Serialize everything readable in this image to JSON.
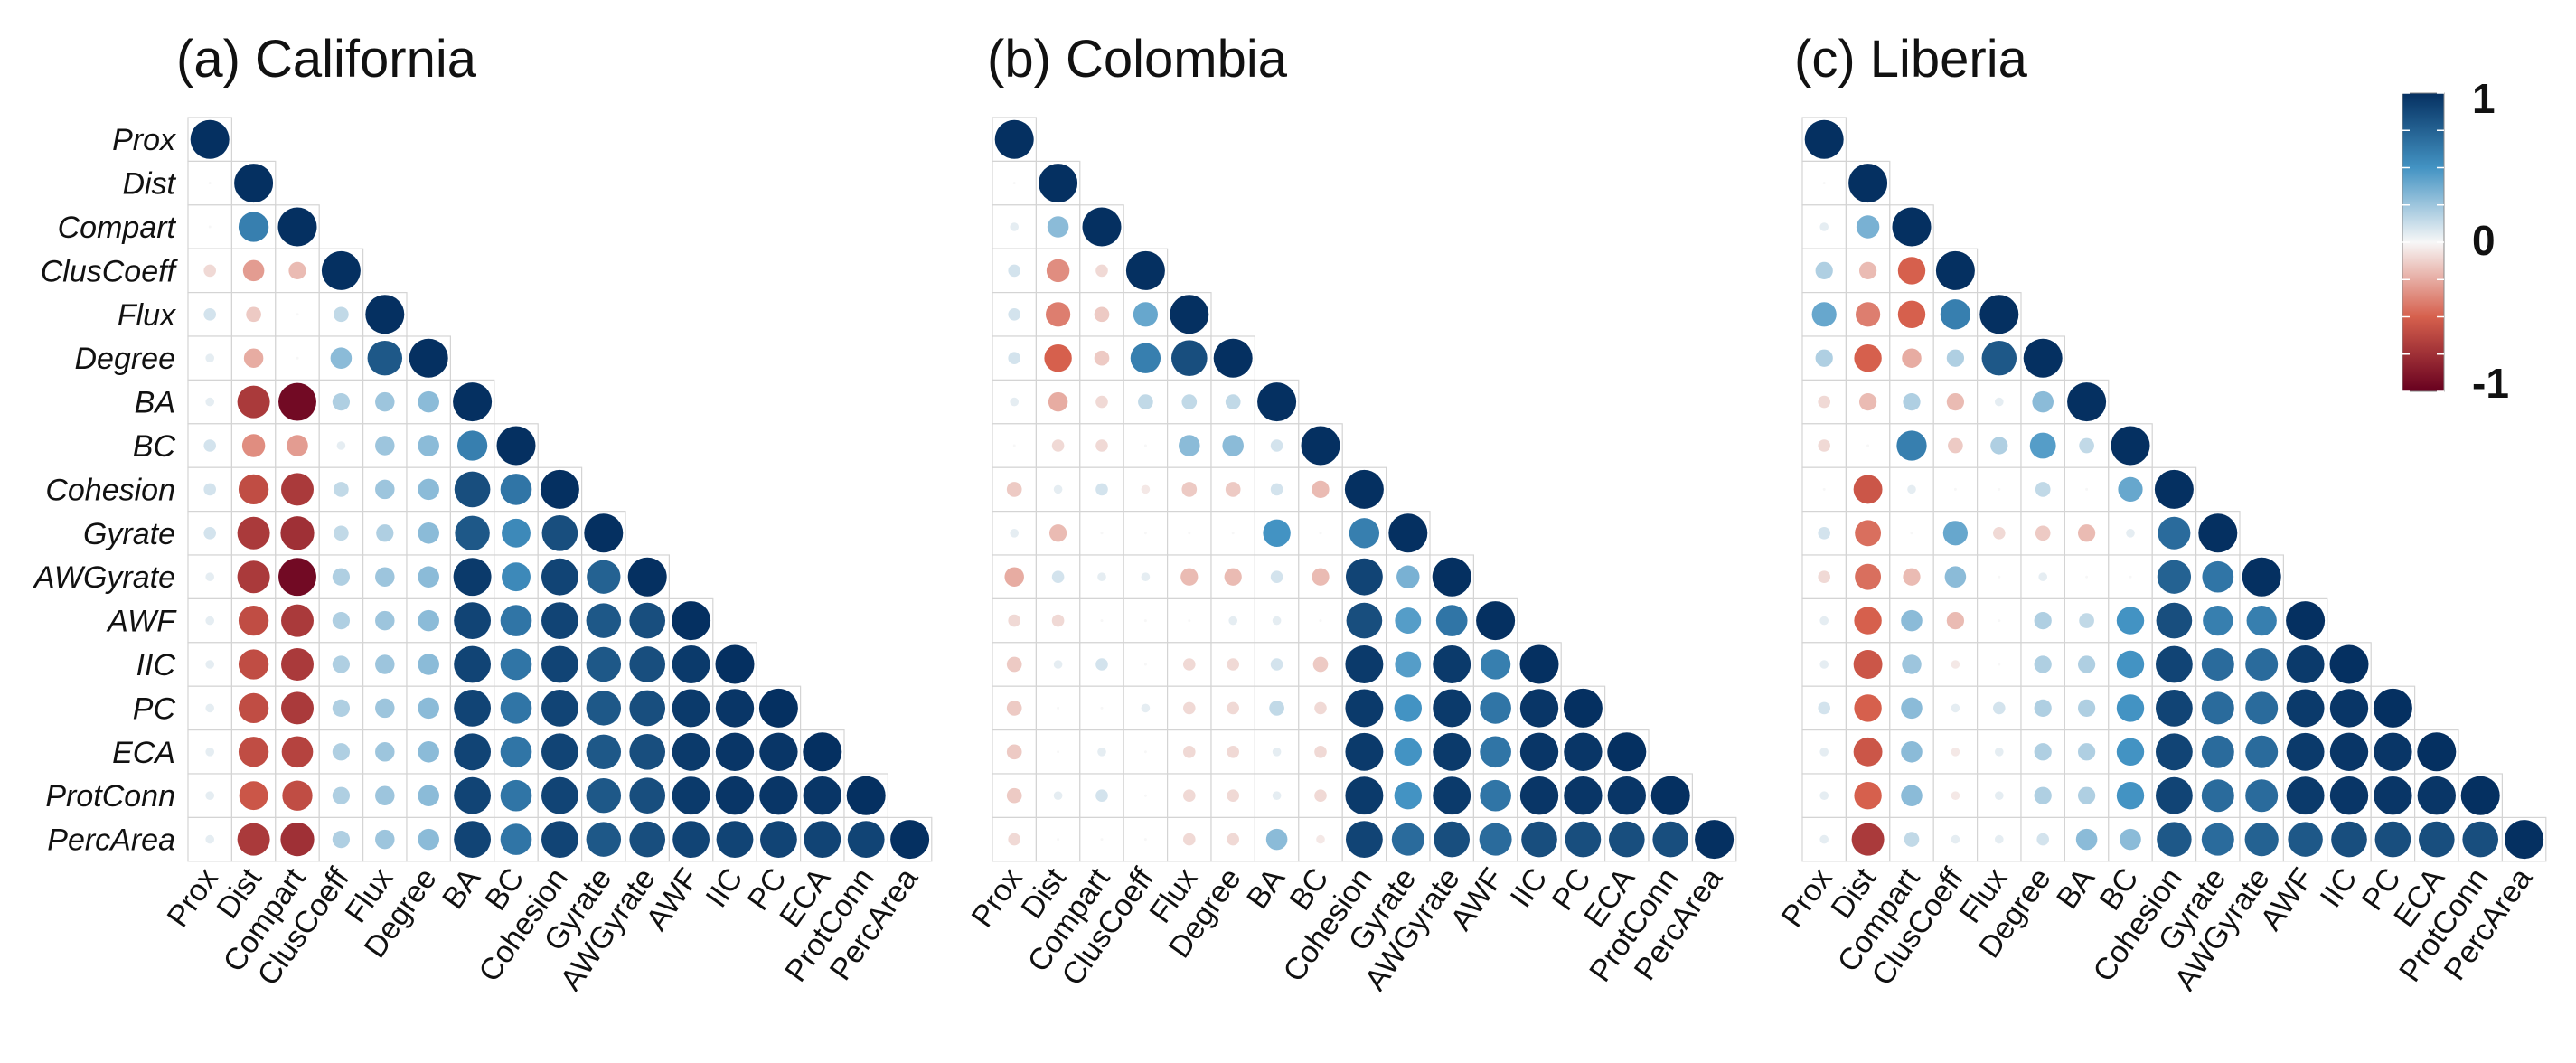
{
  "chart_data": [
    {
      "type": "heatmap",
      "title": "(a) California",
      "variables": [
        "Prox",
        "Dist",
        "Compart",
        "ClusCoeff",
        "Flux",
        "Degree",
        "BA",
        "BC",
        "Cohesion",
        "Gyrate",
        "AWGyrate",
        "AWF",
        "IIC",
        "PC",
        "ECA",
        "ProtConn",
        "PercArea"
      ],
      "values": [
        [
          1.0
        ],
        [
          0.0,
          1.0
        ],
        [
          0.0,
          0.6,
          1.0
        ],
        [
          -0.1,
          -0.3,
          -0.2,
          1.0
        ],
        [
          0.1,
          -0.15,
          0.0,
          0.15,
          1.0
        ],
        [
          0.05,
          -0.25,
          0.0,
          0.3,
          0.8,
          1.0
        ],
        [
          0.05,
          -0.7,
          -0.95,
          0.2,
          0.25,
          0.3,
          1.0
        ],
        [
          0.1,
          -0.35,
          -0.3,
          0.05,
          0.25,
          0.3,
          0.6,
          1.0
        ],
        [
          0.1,
          -0.6,
          -0.7,
          0.15,
          0.25,
          0.3,
          0.85,
          0.65,
          1.0
        ],
        [
          0.1,
          -0.7,
          -0.75,
          0.15,
          0.2,
          0.3,
          0.8,
          0.55,
          0.85,
          1.0
        ],
        [
          0.05,
          -0.7,
          -0.95,
          0.2,
          0.25,
          0.3,
          0.95,
          0.55,
          0.9,
          0.75,
          1.0
        ],
        [
          0.05,
          -0.6,
          -0.7,
          0.2,
          0.25,
          0.3,
          0.9,
          0.65,
          0.9,
          0.8,
          0.85,
          1.0
        ],
        [
          0.05,
          -0.6,
          -0.7,
          0.2,
          0.25,
          0.3,
          0.9,
          0.65,
          0.9,
          0.8,
          0.85,
          0.95,
          1.0
        ],
        [
          0.05,
          -0.6,
          -0.7,
          0.2,
          0.25,
          0.3,
          0.9,
          0.65,
          0.9,
          0.8,
          0.85,
          0.95,
          0.97,
          1.0
        ],
        [
          0.05,
          -0.6,
          -0.65,
          0.2,
          0.25,
          0.3,
          0.9,
          0.65,
          0.9,
          0.8,
          0.85,
          0.95,
          0.97,
          0.97,
          1.0
        ],
        [
          0.05,
          -0.55,
          -0.6,
          0.2,
          0.25,
          0.3,
          0.9,
          0.65,
          0.9,
          0.8,
          0.85,
          0.95,
          0.97,
          0.97,
          0.97,
          1.0
        ],
        [
          0.05,
          -0.7,
          -0.75,
          0.2,
          0.25,
          0.3,
          0.9,
          0.65,
          0.9,
          0.8,
          0.85,
          0.9,
          0.9,
          0.9,
          0.9,
          0.9,
          1.0
        ]
      ]
    },
    {
      "type": "heatmap",
      "title": "(b) Colombia",
      "variables": [
        "Prox",
        "Dist",
        "Compart",
        "ClusCoeff",
        "Flux",
        "Degree",
        "BA",
        "BC",
        "Cohesion",
        "Gyrate",
        "AWGyrate",
        "AWF",
        "IIC",
        "PC",
        "ECA",
        "ProtConn",
        "PercArea"
      ],
      "values": [
        [
          1.0
        ],
        [
          0.0,
          1.0
        ],
        [
          0.05,
          0.3,
          1.0
        ],
        [
          0.1,
          -0.35,
          -0.1,
          1.0
        ],
        [
          0.1,
          -0.4,
          -0.15,
          0.4,
          1.0
        ],
        [
          0.1,
          -0.5,
          -0.15,
          0.6,
          0.85,
          1.0
        ],
        [
          0.05,
          -0.25,
          -0.1,
          0.15,
          0.15,
          0.15,
          1.0
        ],
        [
          0.0,
          -0.1,
          -0.1,
          0.0,
          0.3,
          0.3,
          0.1,
          1.0
        ],
        [
          -0.15,
          0.05,
          0.1,
          -0.05,
          -0.15,
          -0.15,
          0.1,
          -0.2,
          1.0
        ],
        [
          0.05,
          -0.2,
          0.0,
          0.0,
          0.0,
          0.0,
          0.5,
          0.0,
          0.6,
          1.0
        ],
        [
          -0.25,
          0.1,
          0.05,
          0.05,
          -0.2,
          -0.2,
          0.1,
          -0.2,
          0.9,
          0.35,
          1.0
        ],
        [
          -0.1,
          -0.1,
          0.0,
          0.0,
          0.0,
          0.05,
          0.05,
          0.0,
          0.85,
          0.45,
          0.65,
          1.0
        ],
        [
          -0.15,
          0.05,
          0.1,
          0.0,
          -0.1,
          -0.1,
          0.1,
          -0.15,
          0.95,
          0.45,
          0.95,
          0.6,
          1.0
        ],
        [
          -0.15,
          0.0,
          0.0,
          0.05,
          -0.1,
          -0.1,
          0.15,
          -0.1,
          0.95,
          0.5,
          0.95,
          0.65,
          0.97,
          1.0
        ],
        [
          -0.15,
          0.0,
          0.05,
          0.0,
          -0.1,
          -0.1,
          0.05,
          -0.1,
          0.95,
          0.5,
          0.95,
          0.65,
          0.97,
          0.97,
          1.0
        ],
        [
          -0.15,
          0.05,
          0.1,
          0.0,
          -0.1,
          -0.1,
          0.05,
          -0.1,
          0.95,
          0.5,
          0.95,
          0.65,
          0.97,
          0.97,
          0.97,
          1.0
        ],
        [
          -0.1,
          0.0,
          0.0,
          0.0,
          -0.1,
          -0.1,
          0.3,
          -0.05,
          0.9,
          0.7,
          0.85,
          0.7,
          0.85,
          0.85,
          0.85,
          0.85,
          1.0
        ]
      ]
    },
    {
      "type": "heatmap",
      "title": "(c) Liberia",
      "variables": [
        "Prox",
        "Dist",
        "Compart",
        "ClusCoeff",
        "Flux",
        "Degree",
        "BA",
        "BC",
        "Cohesion",
        "Gyrate",
        "AWGyrate",
        "AWF",
        "IIC",
        "PC",
        "ECA",
        "ProtConn",
        "PercArea"
      ],
      "values": [
        [
          1.0
        ],
        [
          0.0,
          1.0
        ],
        [
          0.05,
          0.35,
          1.0
        ],
        [
          0.2,
          -0.2,
          -0.5,
          1.0
        ],
        [
          0.4,
          -0.4,
          -0.5,
          0.6,
          1.0
        ],
        [
          0.2,
          -0.5,
          -0.25,
          0.2,
          0.8,
          1.0
        ],
        [
          -0.1,
          -0.2,
          0.2,
          -0.2,
          0.05,
          0.3,
          1.0
        ],
        [
          -0.1,
          0.0,
          0.6,
          -0.15,
          0.2,
          0.45,
          0.15,
          1.0
        ],
        [
          0.0,
          -0.55,
          0.05,
          0.0,
          0.0,
          0.15,
          0.0,
          0.4,
          1.0
        ],
        [
          0.1,
          -0.45,
          0.0,
          0.4,
          -0.1,
          -0.15,
          -0.2,
          0.05,
          0.7,
          1.0
        ],
        [
          -0.1,
          -0.45,
          -0.2,
          0.3,
          0.0,
          0.05,
          0.0,
          0.0,
          0.75,
          0.65,
          1.0
        ],
        [
          0.05,
          -0.5,
          0.3,
          -0.2,
          0.0,
          0.2,
          0.15,
          0.5,
          0.85,
          0.6,
          0.6,
          1.0
        ],
        [
          0.05,
          -0.55,
          0.25,
          -0.05,
          0.0,
          0.2,
          0.2,
          0.5,
          0.9,
          0.7,
          0.7,
          0.95,
          1.0
        ],
        [
          0.1,
          -0.5,
          0.3,
          0.05,
          0.1,
          0.2,
          0.2,
          0.5,
          0.9,
          0.7,
          0.7,
          0.95,
          0.97,
          1.0
        ],
        [
          0.05,
          -0.55,
          0.3,
          -0.05,
          0.05,
          0.2,
          0.2,
          0.5,
          0.9,
          0.7,
          0.7,
          0.95,
          0.97,
          0.97,
          1.0
        ],
        [
          0.05,
          -0.5,
          0.3,
          -0.05,
          0.05,
          0.2,
          0.2,
          0.5,
          0.9,
          0.7,
          0.7,
          0.95,
          0.97,
          0.97,
          0.97,
          1.0
        ],
        [
          0.05,
          -0.7,
          0.15,
          0.05,
          0.05,
          0.1,
          0.3,
          0.3,
          0.8,
          0.7,
          0.75,
          0.8,
          0.85,
          0.85,
          0.85,
          0.85,
          1.0
        ]
      ]
    }
  ],
  "colorbar": {
    "range": [
      -1,
      1
    ],
    "tick_labels": [
      "1",
      "0",
      "-1"
    ],
    "colors": {
      "negative_end": "#67001f",
      "negative_mid": "#d6604d",
      "neutral": "#f7f7f7",
      "positive_mid": "#4393c3",
      "positive_end": "#053061"
    }
  }
}
